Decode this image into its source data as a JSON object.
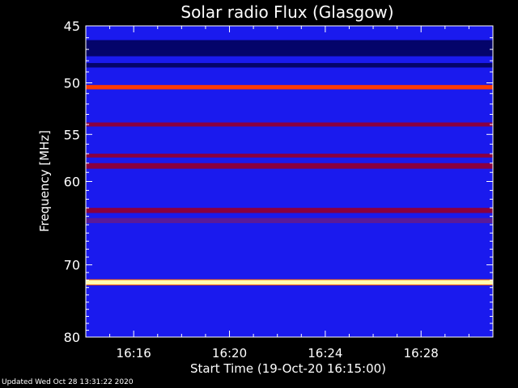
{
  "chart_data": {
    "type": "heatmap",
    "title": "Solar radio Flux (Glasgow)",
    "xlabel": "Start Time (19-Oct-20 16:15:00)",
    "ylabel": "Frequency [MHz]",
    "x_unit": "time (HH:MM)",
    "xlim": [
      "16:14:00",
      "16:31:00"
    ],
    "ylim": [
      45,
      80
    ],
    "y_scale": "log",
    "y_ticks": [
      45,
      50,
      55,
      60,
      70,
      80
    ],
    "x_ticks": [
      "16:16",
      "16:20",
      "16:24",
      "16:28"
    ],
    "background_level": "blue",
    "bands": [
      {
        "freq_range": [
          46.2,
          47.6
        ],
        "level": "dark-blue"
      },
      {
        "freq_range": [
          48.2,
          48.6
        ],
        "level": "dark-blue"
      },
      {
        "freq_range": [
          50.2,
          50.6
        ],
        "level": "red-orange"
      },
      {
        "freq_range": [
          53.8,
          54.2
        ],
        "level": "dark-red"
      },
      {
        "freq_range": [
          57.0,
          57.4
        ],
        "level": "dark-red"
      },
      {
        "freq_range": [
          58.0,
          58.6
        ],
        "level": "dark-red"
      },
      {
        "freq_range": [
          63.0,
          63.6
        ],
        "level": "dark-red"
      },
      {
        "freq_range": [
          64.2,
          64.8
        ],
        "level": "purple"
      },
      {
        "freq_range": [
          72.0,
          72.6
        ],
        "level": "yellow-white"
      }
    ],
    "colors": {
      "background": "#000000",
      "low": "#1a1aff",
      "mid": "#8a0044",
      "high": "#ff4400",
      "peak": "#ffffc0"
    }
  },
  "footer": "Updated Wed Oct 28 13:31:22 2020"
}
